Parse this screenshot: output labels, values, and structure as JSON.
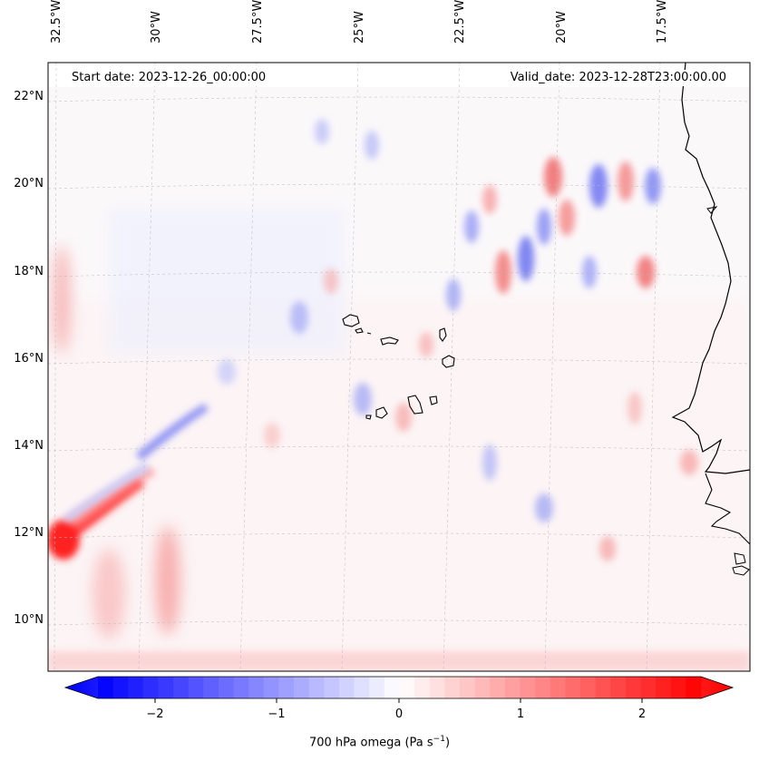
{
  "map": {
    "start_date": "Start date: 2023-12-26_00:00:00",
    "valid_date": "Valid_date: 2023-12-28T23:00:00.00",
    "lon_labels": [
      "32.5°W",
      "30°W",
      "27.5°W",
      "25°W",
      "22.5°W",
      "20°W",
      "17.5°W"
    ],
    "lat_labels": [
      "22°N",
      "20°N",
      "18°N",
      "16°N",
      "14°N",
      "12°N",
      "10°N"
    ],
    "colors": {
      "negative": "#0000ff",
      "positive": "#ff0000",
      "neutral": "#ffffff",
      "coastline": "#000000"
    }
  },
  "colorbar": {
    "ticks": [
      "−2",
      "−1",
      "0",
      "1",
      "2"
    ],
    "label_text": "700 hPa omega (Pa s",
    "label_exp": "−1",
    "label_close": ")"
  }
}
